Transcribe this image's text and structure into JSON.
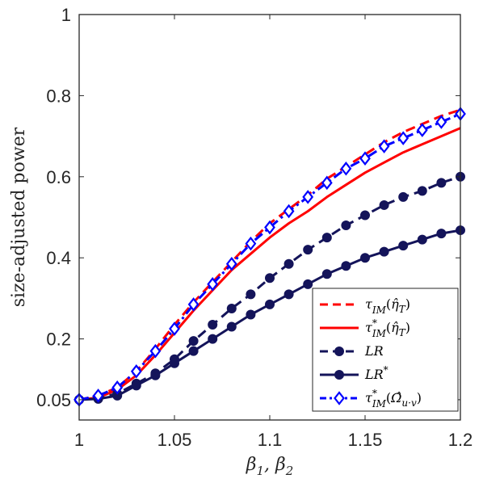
{
  "chart_data": {
    "type": "line",
    "title": "",
    "xlabel": "β1, β2",
    "ylabel": "size-adjusted power",
    "xlim": [
      1,
      1.2
    ],
    "ylim": [
      0,
      1
    ],
    "x_ticks": [
      "1",
      "1.05",
      "1.1",
      "1.15",
      "1.2"
    ],
    "y_ticks": [
      "0.05",
      "0.2",
      "0.4",
      "0.6",
      "0.8",
      "1"
    ],
    "x_tick_values": [
      1,
      1.05,
      1.1,
      1.15,
      1.2
    ],
    "y_tick_values": [
      0.05,
      0.2,
      0.4,
      0.6,
      0.8,
      1
    ],
    "grid": false,
    "legend_position": "bottom-right",
    "x": [
      1,
      1.01,
      1.02,
      1.03,
      1.04,
      1.05,
      1.06,
      1.07,
      1.08,
      1.09,
      1.1,
      1.11,
      1.12,
      1.13,
      1.14,
      1.15,
      1.16,
      1.17,
      1.18,
      1.19,
      1.2
    ],
    "series": [
      {
        "name": "τIM(η̂T)",
        "color": "#ff0000",
        "style": "dashed",
        "marker": "none",
        "values": [
          0.05,
          0.06,
          0.08,
          0.12,
          0.175,
          0.235,
          0.29,
          0.34,
          0.39,
          0.44,
          0.485,
          0.52,
          0.555,
          0.595,
          0.625,
          0.655,
          0.685,
          0.71,
          0.73,
          0.75,
          0.765
        ]
      },
      {
        "name": "τ*IM(η̂T)",
        "color": "#ff0000",
        "style": "solid",
        "marker": "none",
        "values": [
          0.05,
          0.055,
          0.075,
          0.11,
          0.16,
          0.215,
          0.27,
          0.32,
          0.37,
          0.41,
          0.45,
          0.485,
          0.515,
          0.55,
          0.58,
          0.61,
          0.635,
          0.66,
          0.68,
          0.7,
          0.72
        ]
      },
      {
        "name": "LR",
        "color": "#14145a",
        "style": "dashed",
        "marker": "circle",
        "values": [
          0.05,
          0.055,
          0.065,
          0.09,
          0.115,
          0.15,
          0.195,
          0.235,
          0.275,
          0.31,
          0.35,
          0.385,
          0.42,
          0.45,
          0.48,
          0.505,
          0.53,
          0.55,
          0.565,
          0.585,
          0.6
        ]
      },
      {
        "name": "LR*",
        "color": "#14145a",
        "style": "solid",
        "marker": "circle",
        "values": [
          0.05,
          0.052,
          0.06,
          0.085,
          0.11,
          0.14,
          0.17,
          0.2,
          0.23,
          0.26,
          0.285,
          0.31,
          0.335,
          0.36,
          0.38,
          0.4,
          0.415,
          0.43,
          0.445,
          0.46,
          0.468
        ]
      },
      {
        "name": "τ*IM(Ω̂u·v)",
        "color": "#0000ff",
        "style": "dashdot",
        "marker": "diamond",
        "values": [
          0.05,
          0.06,
          0.08,
          0.12,
          0.17,
          0.225,
          0.285,
          0.335,
          0.385,
          0.435,
          0.475,
          0.515,
          0.55,
          0.585,
          0.62,
          0.645,
          0.675,
          0.695,
          0.715,
          0.735,
          0.755
        ]
      }
    ]
  }
}
